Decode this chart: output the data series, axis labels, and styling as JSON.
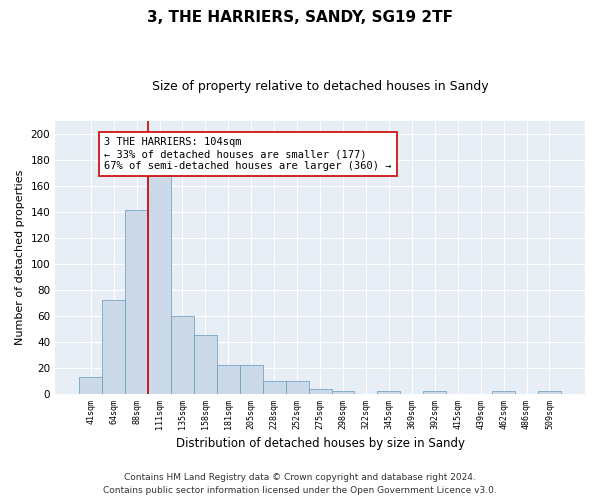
{
  "title": "3, THE HARRIERS, SANDY, SG19 2TF",
  "subtitle": "Size of property relative to detached houses in Sandy",
  "xlabel": "Distribution of detached houses by size in Sandy",
  "ylabel": "Number of detached properties",
  "bar_color": "#ccd9e8",
  "bar_edge_color": "#6699bb",
  "bin_labels": [
    "41sqm",
    "64sqm",
    "88sqm",
    "111sqm",
    "135sqm",
    "158sqm",
    "181sqm",
    "205sqm",
    "228sqm",
    "252sqm",
    "275sqm",
    "298sqm",
    "322sqm",
    "345sqm",
    "369sqm",
    "392sqm",
    "415sqm",
    "439sqm",
    "462sqm",
    "486sqm",
    "509sqm"
  ],
  "bar_heights": [
    13,
    72,
    141,
    168,
    60,
    45,
    22,
    22,
    10,
    10,
    4,
    2,
    0,
    2,
    0,
    2,
    0,
    0,
    2,
    0,
    2
  ],
  "vline_bin_index": 3,
  "vline_color": "#cc0000",
  "annotation_text": "3 THE HARRIERS: 104sqm\n← 33% of detached houses are smaller (177)\n67% of semi-detached houses are larger (360) →",
  "ylim": [
    0,
    210
  ],
  "yticks": [
    0,
    20,
    40,
    60,
    80,
    100,
    120,
    140,
    160,
    180,
    200
  ],
  "background_color": "#e8eef5",
  "footer": "Contains HM Land Registry data © Crown copyright and database right 2024.\nContains public sector information licensed under the Open Government Licence v3.0.",
  "title_fontsize": 11,
  "subtitle_fontsize": 9,
  "annotation_fontsize": 7.5,
  "footer_fontsize": 6.5,
  "ylabel_fontsize": 8,
  "xlabel_fontsize": 8.5
}
